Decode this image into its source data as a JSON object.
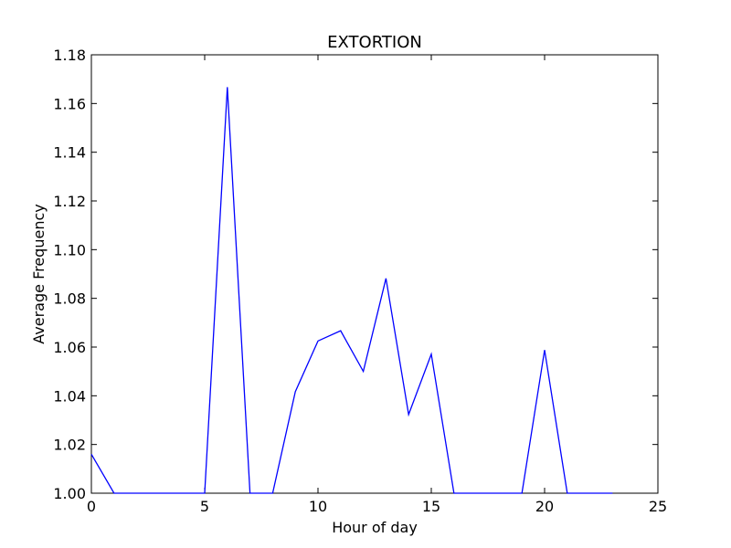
{
  "chart_data": {
    "type": "line",
    "title": "EXTORTION",
    "xlabel": "Hour of day",
    "ylabel": "Average Frequency",
    "xlim": [
      0,
      25
    ],
    "ylim": [
      1.0,
      1.18
    ],
    "xticks": [
      0,
      5,
      10,
      15,
      20,
      25
    ],
    "yticks": [
      1.0,
      1.02,
      1.04,
      1.06,
      1.08,
      1.1,
      1.12,
      1.14,
      1.16,
      1.18
    ],
    "xtick_labels": [
      "0",
      "5",
      "10",
      "15",
      "20",
      "25"
    ],
    "ytick_labels": [
      "1.00",
      "1.02",
      "1.04",
      "1.06",
      "1.08",
      "1.10",
      "1.12",
      "1.14",
      "1.16",
      "1.18"
    ],
    "grid": false,
    "series": [
      {
        "color": "#0000ff",
        "x": [
          0,
          1,
          2,
          3,
          4,
          5,
          6,
          7,
          8,
          9,
          10,
          11,
          12,
          13,
          14,
          15,
          16,
          17,
          18,
          19,
          20,
          21,
          22,
          23
        ],
        "y": [
          1.016,
          1.0,
          1.0,
          1.0,
          1.0,
          1.0,
          1.1667,
          1.0,
          1.0,
          1.0417,
          1.0625,
          1.0667,
          1.05,
          1.0882,
          1.0323,
          1.0571,
          1.0,
          1.0,
          1.0,
          1.0,
          1.0588,
          1.0,
          1.0,
          1.0
        ]
      }
    ]
  }
}
